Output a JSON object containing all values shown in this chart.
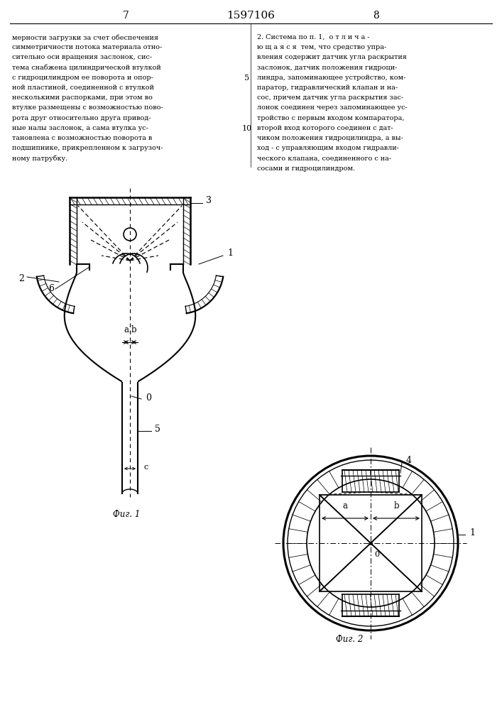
{
  "page_left": "7",
  "page_center": "1597106",
  "page_right": "8",
  "text_left": "мерности загрузки за счет обеспечения\nсимметричности потока материала отно-\nсительно оси вращения заслонок, сис-\nтема снабжена цилиндрической втулкой\nс гидроцилиндром ее поворота и опор-\nной пластиной, соединенной с втулкой\nнесколькими распорками, при этом во\nвтулке размещены с возможностью пово-\nрота друг относительно друга привод-\nные налы заслонок, а сама втулка ус-\nтановлена с возможностью поворота в\nподшипнике, прикрепленном к загрузоч-\nному патрубку.",
  "text_right": "2. Система по п. 1,  о т л и ч а -\nю щ а я с я  тем, что средство упра-\nвления содержит датчик угла раскрытия\nзаслонок, датчик положения гидроци-\nлиндра, запоминающее устройство, ком-\nпаратор, гидравлический клапан и на-\nсос, причем датчик угла раскрытия зас-\nлонок соединен через запоминающее ус-\nтройство с первым входом компаратора,\nвторой вход которого соединен с дат-\nчиком положения гидроцилиндра, а вы-\nход - с управляющим входом гидравли-\nческого клапана, соединенного с на-\nсосами и гидроцилиндром.",
  "line_number_5": "5",
  "line_number_10": "10",
  "fig1_label": "Фиг. 1",
  "fig2_label": "Фиг. 2"
}
